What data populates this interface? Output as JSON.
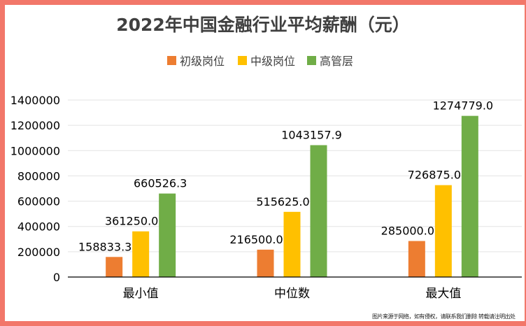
{
  "chart_data": {
    "type": "bar",
    "title": "2022年中国金融行业平均薪酬（元）",
    "categories": [
      "最小值",
      "中位数",
      "最大值"
    ],
    "series": [
      {
        "name": "初级岗位",
        "color": "#ed7d31",
        "values": [
          158833.3,
          216500.0,
          285000.0
        ],
        "labels": [
          "158833.3",
          "216500.0",
          "285000.0"
        ]
      },
      {
        "name": "中级岗位",
        "color": "#ffc000",
        "values": [
          361250.0,
          515625.0,
          726875.0
        ],
        "labels": [
          "361250.0",
          "515625.0",
          "726875.0"
        ]
      },
      {
        "name": "高管层",
        "color": "#70ad47",
        "values": [
          660526.3,
          1043157.9,
          1274779.0
        ],
        "labels": [
          "660526.3",
          "1043157.9",
          "1274779.0"
        ]
      }
    ],
    "ylim": [
      0,
      1400000
    ],
    "yticks": [
      "0",
      "200000",
      "400000",
      "600000",
      "800000",
      "1000000",
      "1200000",
      "1400000"
    ],
    "grid": true,
    "legend_position": "top"
  },
  "footnote": "图片来源于网络，如有侵权，请联系我们删除 转载请注明出处"
}
